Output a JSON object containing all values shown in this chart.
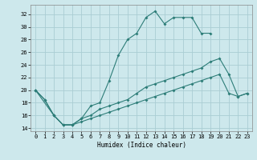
{
  "xlabel": "Humidex (Indice chaleur)",
  "bg_color": "#cde8ec",
  "grid_color": "#aacdd4",
  "line_color": "#2d7d78",
  "xlim": [
    -0.5,
    23.5
  ],
  "ylim": [
    13.5,
    33.5
  ],
  "xticks": [
    0,
    1,
    2,
    3,
    4,
    5,
    6,
    7,
    8,
    9,
    10,
    11,
    12,
    13,
    14,
    15,
    16,
    17,
    18,
    19,
    20,
    21,
    22,
    23
  ],
  "yticks": [
    14,
    16,
    18,
    20,
    22,
    24,
    26,
    28,
    30,
    32
  ],
  "line1_x": [
    0,
    1,
    2,
    3,
    4,
    5,
    6,
    7,
    8,
    9,
    10,
    11,
    12,
    13,
    14,
    15,
    16,
    17,
    18,
    19
  ],
  "line1_y": [
    20,
    18.5,
    16,
    14.5,
    14.5,
    15.5,
    17.5,
    18,
    21.5,
    25.5,
    28,
    29,
    31.5,
    32.5,
    30.5,
    31.5,
    31.5,
    31.5,
    29,
    29
  ],
  "line2_x": [
    0,
    1,
    2,
    3,
    4,
    5,
    6,
    7,
    8,
    9,
    10,
    11,
    12,
    13,
    14,
    15,
    16,
    17,
    18,
    19,
    20,
    21,
    22,
    23
  ],
  "line2_y": [
    20,
    18.5,
    16,
    14.5,
    14.5,
    15.5,
    16,
    17,
    17.5,
    18,
    18.5,
    19.5,
    20.5,
    21,
    21.5,
    22,
    22.5,
    23,
    23.5,
    24.5,
    25,
    22.5,
    19,
    19.5
  ],
  "line3_x": [
    0,
    2,
    3,
    4,
    5,
    6,
    7,
    8,
    9,
    10,
    11,
    12,
    13,
    14,
    15,
    16,
    17,
    18,
    19,
    20,
    21,
    22,
    23
  ],
  "line3_y": [
    20,
    16,
    14.5,
    14.5,
    15,
    15.5,
    16,
    16.5,
    17,
    17.5,
    18,
    18.5,
    19,
    19.5,
    20,
    20.5,
    21,
    21.5,
    22,
    22.5,
    19.5,
    19,
    19.5
  ]
}
